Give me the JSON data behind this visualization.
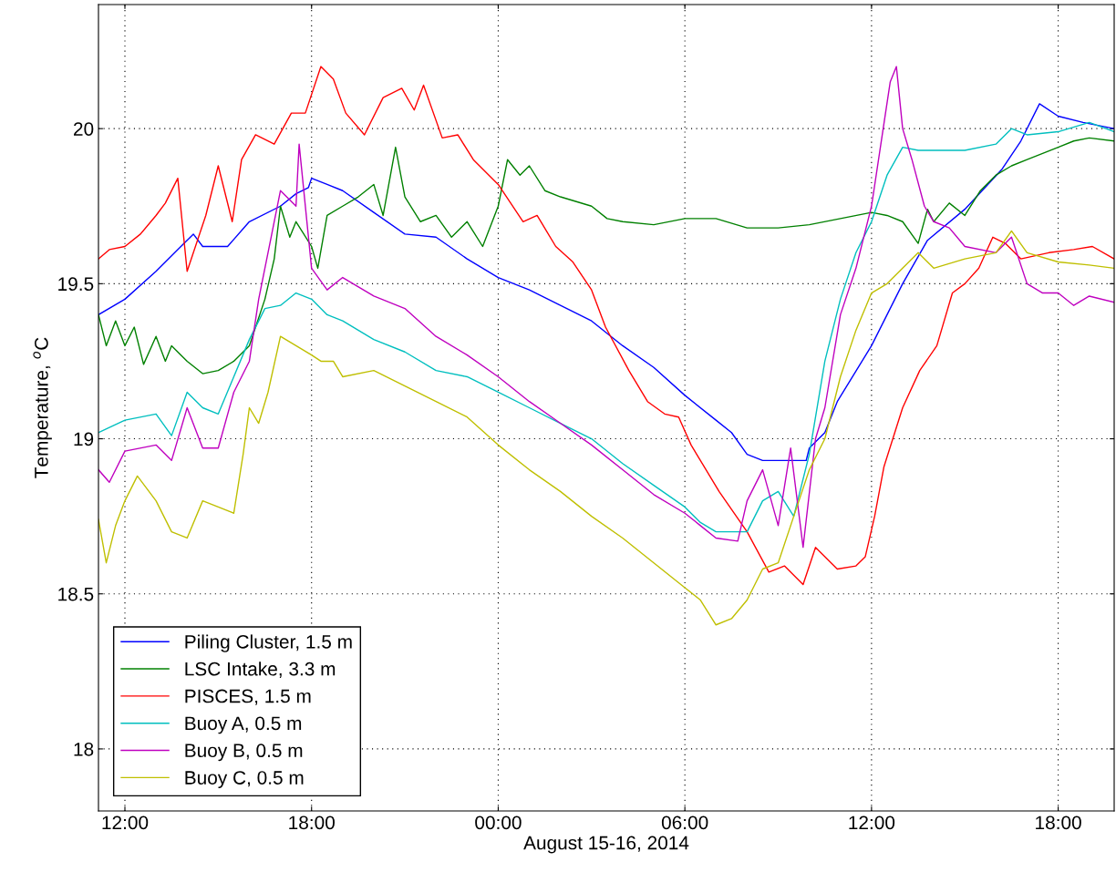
{
  "chart_data": {
    "type": "line",
    "xlabel": "August 15-16, 2014",
    "ylabel": "Temperature, $^{o}$C",
    "xlim": [
      "2014-08-15T11:09",
      "2014-08-16T19:48"
    ],
    "ylim": [
      17.8,
      20.4
    ],
    "xticks": [
      {
        "value": "2014-08-15T12:00",
        "label": "12:00"
      },
      {
        "value": "2014-08-15T18:00",
        "label": "18:00"
      },
      {
        "value": "2014-08-16T00:00",
        "label": "00:00"
      },
      {
        "value": "2014-08-16T06:00",
        "label": "06:00"
      },
      {
        "value": "2014-08-16T12:00",
        "label": "12:00"
      },
      {
        "value": "2014-08-16T18:00",
        "label": "18:00"
      }
    ],
    "yticks": [
      18,
      18.5,
      19,
      19.5,
      20
    ],
    "grid": true,
    "legend": "bottom left",
    "series": [
      {
        "name": "Piling Cluster, 1.5 m",
        "color": "#0000ff",
        "x": [
          "2014-08-15T11:09",
          "2014-08-15T12:00",
          "2014-08-15T13:00",
          "2014-08-15T13:48",
          "2014-08-15T14:12",
          "2014-08-15T14:30",
          "2014-08-15T15:18",
          "2014-08-15T16:00",
          "2014-08-15T17:00",
          "2014-08-15T17:30",
          "2014-08-15T17:54",
          "2014-08-15T18:00",
          "2014-08-15T18:30",
          "2014-08-15T19:00",
          "2014-08-15T20:00",
          "2014-08-15T21:00",
          "2014-08-15T22:00",
          "2014-08-15T23:00",
          "2014-08-16T00:00",
          "2014-08-16T01:00",
          "2014-08-16T02:00",
          "2014-08-16T03:00",
          "2014-08-16T04:00",
          "2014-08-16T05:00",
          "2014-08-16T06:00",
          "2014-08-16T07:00",
          "2014-08-16T07:30",
          "2014-08-16T08:00",
          "2014-08-16T08:30",
          "2014-08-16T09:00",
          "2014-08-16T09:54",
          "2014-08-16T10:00",
          "2014-08-16T10:30",
          "2014-08-16T10:54",
          "2014-08-16T12:00",
          "2014-08-16T13:00",
          "2014-08-16T13:48",
          "2014-08-16T15:00",
          "2014-08-16T16:12",
          "2014-08-16T16:48",
          "2014-08-16T17:24",
          "2014-08-16T18:00",
          "2014-08-16T18:48",
          "2014-08-16T19:48"
        ],
        "values": [
          19.4,
          19.45,
          19.54,
          19.62,
          19.66,
          19.62,
          19.62,
          19.7,
          19.75,
          19.79,
          19.81,
          19.84,
          19.82,
          19.8,
          19.73,
          19.66,
          19.65,
          19.58,
          19.52,
          19.48,
          19.43,
          19.38,
          19.3,
          19.23,
          19.14,
          19.06,
          19.02,
          18.95,
          18.93,
          18.93,
          18.93,
          18.97,
          19.02,
          19.12,
          19.3,
          19.5,
          19.64,
          19.74,
          19.87,
          19.96,
          20.08,
          20.04,
          20.02,
          20.0
        ]
      },
      {
        "name": "LSC Intake, 3.3 m",
        "color": "#008000",
        "x": [
          "2014-08-15T11:09",
          "2014-08-15T11:24",
          "2014-08-15T11:42",
          "2014-08-15T12:00",
          "2014-08-15T12:18",
          "2014-08-15T12:36",
          "2014-08-15T13:00",
          "2014-08-15T13:18",
          "2014-08-15T13:30",
          "2014-08-15T14:00",
          "2014-08-15T14:30",
          "2014-08-15T15:00",
          "2014-08-15T15:30",
          "2014-08-15T16:00",
          "2014-08-15T16:30",
          "2014-08-15T16:48",
          "2014-08-15T17:00",
          "2014-08-15T17:18",
          "2014-08-15T17:30",
          "2014-08-15T18:00",
          "2014-08-15T18:12",
          "2014-08-15T18:30",
          "2014-08-15T19:00",
          "2014-08-15T19:30",
          "2014-08-15T20:00",
          "2014-08-15T20:18",
          "2014-08-15T20:42",
          "2014-08-15T21:00",
          "2014-08-15T21:30",
          "2014-08-15T22:00",
          "2014-08-15T22:30",
          "2014-08-15T23:00",
          "2014-08-15T23:30",
          "2014-08-16T00:00",
          "2014-08-16T00:18",
          "2014-08-16T00:42",
          "2014-08-16T01:00",
          "2014-08-16T01:30",
          "2014-08-16T02:00",
          "2014-08-16T03:00",
          "2014-08-16T03:30",
          "2014-08-16T04:00",
          "2014-08-16T05:00",
          "2014-08-16T06:00",
          "2014-08-16T07:00",
          "2014-08-16T08:00",
          "2014-08-16T09:00",
          "2014-08-16T10:00",
          "2014-08-16T11:00",
          "2014-08-16T12:00",
          "2014-08-16T12:30",
          "2014-08-16T13:00",
          "2014-08-16T13:30",
          "2014-08-16T13:48",
          "2014-08-16T14:00",
          "2014-08-16T14:30",
          "2014-08-16T15:00",
          "2014-08-16T15:30",
          "2014-08-16T16:00",
          "2014-08-16T16:30",
          "2014-08-16T17:00",
          "2014-08-16T17:30",
          "2014-08-16T18:00",
          "2014-08-16T18:30",
          "2014-08-16T19:00",
          "2014-08-16T19:48"
        ],
        "values": [
          19.4,
          19.3,
          19.38,
          19.3,
          19.36,
          19.24,
          19.33,
          19.25,
          19.3,
          19.25,
          19.21,
          19.22,
          19.25,
          19.3,
          19.45,
          19.58,
          19.75,
          19.65,
          19.7,
          19.62,
          19.55,
          19.72,
          19.75,
          19.78,
          19.82,
          19.72,
          19.94,
          19.78,
          19.7,
          19.72,
          19.65,
          19.7,
          19.62,
          19.75,
          19.9,
          19.85,
          19.88,
          19.8,
          19.78,
          19.75,
          19.71,
          19.7,
          19.69,
          19.71,
          19.71,
          19.68,
          19.68,
          19.69,
          19.71,
          19.73,
          19.72,
          19.7,
          19.63,
          19.74,
          19.7,
          19.76,
          19.72,
          19.8,
          19.85,
          19.88,
          19.9,
          19.92,
          19.94,
          19.96,
          19.97,
          19.96
        ]
      },
      {
        "name": "PISCES, 1.5 m",
        "color": "#ff0000",
        "x": [
          "2014-08-15T11:09",
          "2014-08-15T11:30",
          "2014-08-15T12:00",
          "2014-08-15T12:30",
          "2014-08-15T13:00",
          "2014-08-15T13:18",
          "2014-08-15T13:42",
          "2014-08-15T14:00",
          "2014-08-15T14:36",
          "2014-08-15T15:00",
          "2014-08-15T15:27",
          "2014-08-15T15:45",
          "2014-08-15T16:12",
          "2014-08-15T16:48",
          "2014-08-15T17:21",
          "2014-08-15T17:48",
          "2014-08-15T18:18",
          "2014-08-15T18:42",
          "2014-08-15T19:06",
          "2014-08-15T19:42",
          "2014-08-15T20:18",
          "2014-08-15T20:54",
          "2014-08-15T21:18",
          "2014-08-15T21:36",
          "2014-08-15T22:12",
          "2014-08-15T22:42",
          "2014-08-15T23:12",
          "2014-08-16T00:00",
          "2014-08-16T00:24",
          "2014-08-16T00:48",
          "2014-08-16T01:15",
          "2014-08-16T01:51",
          "2014-08-16T02:24",
          "2014-08-16T03:00",
          "2014-08-16T03:27",
          "2014-08-16T04:12",
          "2014-08-16T04:48",
          "2014-08-16T05:21",
          "2014-08-16T05:48",
          "2014-08-16T06:12",
          "2014-08-16T07:06",
          "2014-08-16T08:00",
          "2014-08-16T08:42",
          "2014-08-16T09:12",
          "2014-08-16T09:48",
          "2014-08-16T10:12",
          "2014-08-16T10:54",
          "2014-08-16T11:30",
          "2014-08-16T11:48",
          "2014-08-16T12:06",
          "2014-08-16T12:24",
          "2014-08-16T13:00",
          "2014-08-16T13:33",
          "2014-08-16T14:06",
          "2014-08-16T14:36",
          "2014-08-16T15:00",
          "2014-08-16T15:27",
          "2014-08-16T15:54",
          "2014-08-16T16:18",
          "2014-08-16T16:48",
          "2014-08-16T17:42",
          "2014-08-16T18:30",
          "2014-08-16T19:06",
          "2014-08-16T19:48"
        ],
        "values": [
          19.58,
          19.61,
          19.62,
          19.66,
          19.72,
          19.76,
          19.84,
          19.54,
          19.72,
          19.88,
          19.7,
          19.9,
          19.98,
          19.95,
          20.05,
          20.05,
          20.2,
          20.16,
          20.05,
          19.98,
          20.1,
          20.13,
          20.06,
          20.14,
          19.97,
          19.98,
          19.9,
          19.82,
          19.76,
          19.7,
          19.72,
          19.62,
          19.57,
          19.48,
          19.36,
          19.22,
          19.12,
          19.08,
          19.07,
          18.98,
          18.83,
          18.7,
          18.57,
          18.59,
          18.53,
          18.65,
          18.58,
          18.59,
          18.62,
          18.75,
          18.91,
          19.1,
          19.22,
          19.3,
          19.47,
          19.5,
          19.55,
          19.65,
          19.63,
          19.58,
          19.6,
          19.61,
          19.62,
          19.58
        ]
      },
      {
        "name": "Buoy A, 0.5 m",
        "color": "#00bfbf",
        "x": [
          "2014-08-15T11:09",
          "2014-08-15T12:00",
          "2014-08-15T13:00",
          "2014-08-15T13:30",
          "2014-08-15T14:00",
          "2014-08-15T14:30",
          "2014-08-15T15:00",
          "2014-08-15T15:30",
          "2014-08-15T16:00",
          "2014-08-15T16:30",
          "2014-08-15T17:00",
          "2014-08-15T17:30",
          "2014-08-15T18:00",
          "2014-08-15T18:30",
          "2014-08-15T19:00",
          "2014-08-15T20:00",
          "2014-08-15T21:00",
          "2014-08-15T22:00",
          "2014-08-15T23:00",
          "2014-08-16T00:00",
          "2014-08-16T01:00",
          "2014-08-16T02:00",
          "2014-08-16T03:00",
          "2014-08-16T04:00",
          "2014-08-16T05:00",
          "2014-08-16T06:00",
          "2014-08-16T06:30",
          "2014-08-16T07:00",
          "2014-08-16T08:00",
          "2014-08-16T08:30",
          "2014-08-16T09:00",
          "2014-08-16T09:30",
          "2014-08-16T10:00",
          "2014-08-16T10:30",
          "2014-08-16T11:00",
          "2014-08-16T11:30",
          "2014-08-16T12:00",
          "2014-08-16T12:30",
          "2014-08-16T13:00",
          "2014-08-16T13:30",
          "2014-08-16T14:00",
          "2014-08-16T15:00",
          "2014-08-16T16:00",
          "2014-08-16T16:30",
          "2014-08-16T17:00",
          "2014-08-16T18:00",
          "2014-08-16T19:00",
          "2014-08-16T19:48"
        ],
        "values": [
          19.02,
          19.06,
          19.08,
          19.01,
          19.15,
          19.1,
          19.08,
          19.2,
          19.32,
          19.42,
          19.43,
          19.47,
          19.45,
          19.4,
          19.38,
          19.32,
          19.28,
          19.22,
          19.2,
          19.15,
          19.1,
          19.05,
          19.0,
          18.92,
          18.85,
          18.78,
          18.73,
          18.7,
          18.7,
          18.8,
          18.83,
          18.75,
          18.95,
          19.25,
          19.45,
          19.6,
          19.7,
          19.85,
          19.94,
          19.93,
          19.93,
          19.93,
          19.95,
          20.0,
          19.98,
          19.99,
          20.02,
          19.99
        ]
      },
      {
        "name": "Buoy B, 0.5 m",
        "color": "#bf00bf",
        "x": [
          "2014-08-15T11:09",
          "2014-08-15T11:30",
          "2014-08-15T12:00",
          "2014-08-15T13:00",
          "2014-08-15T13:30",
          "2014-08-15T14:00",
          "2014-08-15T14:30",
          "2014-08-15T15:00",
          "2014-08-15T15:30",
          "2014-08-15T16:00",
          "2014-08-15T16:18",
          "2014-08-15T16:42",
          "2014-08-15T17:00",
          "2014-08-15T17:30",
          "2014-08-15T17:36",
          "2014-08-15T18:00",
          "2014-08-15T18:30",
          "2014-08-15T19:00",
          "2014-08-15T20:00",
          "2014-08-15T21:00",
          "2014-08-15T22:00",
          "2014-08-15T23:00",
          "2014-08-16T00:00",
          "2014-08-16T01:00",
          "2014-08-16T02:00",
          "2014-08-16T03:00",
          "2014-08-16T04:00",
          "2014-08-16T05:00",
          "2014-08-16T06:00",
          "2014-08-16T06:30",
          "2014-08-16T07:00",
          "2014-08-16T07:42",
          "2014-08-16T08:00",
          "2014-08-16T08:30",
          "2014-08-16T09:00",
          "2014-08-16T09:24",
          "2014-08-16T09:48",
          "2014-08-16T10:12",
          "2014-08-16T10:30",
          "2014-08-16T11:00",
          "2014-08-16T11:30",
          "2014-08-16T12:00",
          "2014-08-16T12:18",
          "2014-08-16T12:36",
          "2014-08-16T12:48",
          "2014-08-16T13:00",
          "2014-08-16T13:18",
          "2014-08-16T13:42",
          "2014-08-16T14:00",
          "2014-08-16T14:30",
          "2014-08-16T15:00",
          "2014-08-16T16:00",
          "2014-08-16T16:30",
          "2014-08-16T17:00",
          "2014-08-16T17:30",
          "2014-08-16T18:00",
          "2014-08-16T18:30",
          "2014-08-16T19:00",
          "2014-08-16T19:48"
        ],
        "values": [
          18.9,
          18.86,
          18.96,
          18.98,
          18.93,
          19.1,
          18.97,
          18.97,
          19.15,
          19.25,
          19.45,
          19.65,
          19.8,
          19.75,
          19.95,
          19.55,
          19.48,
          19.52,
          19.46,
          19.42,
          19.33,
          19.27,
          19.2,
          19.12,
          19.05,
          18.98,
          18.9,
          18.82,
          18.76,
          18.72,
          18.68,
          18.67,
          18.8,
          18.9,
          18.72,
          18.97,
          18.65,
          19.0,
          19.1,
          19.4,
          19.55,
          19.75,
          19.95,
          20.15,
          20.2,
          20.0,
          19.9,
          19.75,
          19.7,
          19.68,
          19.62,
          19.6,
          19.65,
          19.5,
          19.47,
          19.47,
          19.43,
          19.46,
          19.44
        ]
      },
      {
        "name": "Buoy C, 0.5 m",
        "color": "#bfbf00",
        "x": [
          "2014-08-15T11:09",
          "2014-08-15T11:24",
          "2014-08-15T11:42",
          "2014-08-15T12:00",
          "2014-08-15T12:24",
          "2014-08-15T13:00",
          "2014-08-15T13:30",
          "2014-08-15T14:00",
          "2014-08-15T14:30",
          "2014-08-15T15:00",
          "2014-08-15T15:30",
          "2014-08-15T15:48",
          "2014-08-15T16:00",
          "2014-08-15T16:18",
          "2014-08-15T16:36",
          "2014-08-15T17:00",
          "2014-08-15T17:30",
          "2014-08-15T18:00",
          "2014-08-15T18:18",
          "2014-08-15T18:42",
          "2014-08-15T19:00",
          "2014-08-15T20:00",
          "2014-08-15T21:00",
          "2014-08-15T22:00",
          "2014-08-15T23:00",
          "2014-08-16T00:00",
          "2014-08-16T01:00",
          "2014-08-16T02:00",
          "2014-08-16T03:00",
          "2014-08-16T04:00",
          "2014-08-16T05:00",
          "2014-08-16T06:00",
          "2014-08-16T06:30",
          "2014-08-16T07:00",
          "2014-08-16T07:30",
          "2014-08-16T08:00",
          "2014-08-16T08:30",
          "2014-08-16T09:00",
          "2014-08-16T09:30",
          "2014-08-16T10:00",
          "2014-08-16T10:30",
          "2014-08-16T11:00",
          "2014-08-16T11:30",
          "2014-08-16T12:00",
          "2014-08-16T12:30",
          "2014-08-16T13:00",
          "2014-08-16T13:30",
          "2014-08-16T14:00",
          "2014-08-16T15:00",
          "2014-08-16T16:00",
          "2014-08-16T16:30",
          "2014-08-16T17:00",
          "2014-08-16T18:00",
          "2014-08-16T19:00",
          "2014-08-16T19:48"
        ],
        "values": [
          18.74,
          18.6,
          18.72,
          18.8,
          18.88,
          18.8,
          18.7,
          18.68,
          18.8,
          18.78,
          18.76,
          18.95,
          19.1,
          19.05,
          19.15,
          19.33,
          19.3,
          19.27,
          19.25,
          19.25,
          19.2,
          19.22,
          19.17,
          19.12,
          19.07,
          18.98,
          18.9,
          18.83,
          18.75,
          18.68,
          18.6,
          18.52,
          18.48,
          18.4,
          18.42,
          18.48,
          18.58,
          18.6,
          18.75,
          18.9,
          19.0,
          19.2,
          19.35,
          19.47,
          19.5,
          19.55,
          19.6,
          19.55,
          19.58,
          19.6,
          19.67,
          19.6,
          19.57,
          19.56,
          19.55
        ]
      }
    ]
  }
}
